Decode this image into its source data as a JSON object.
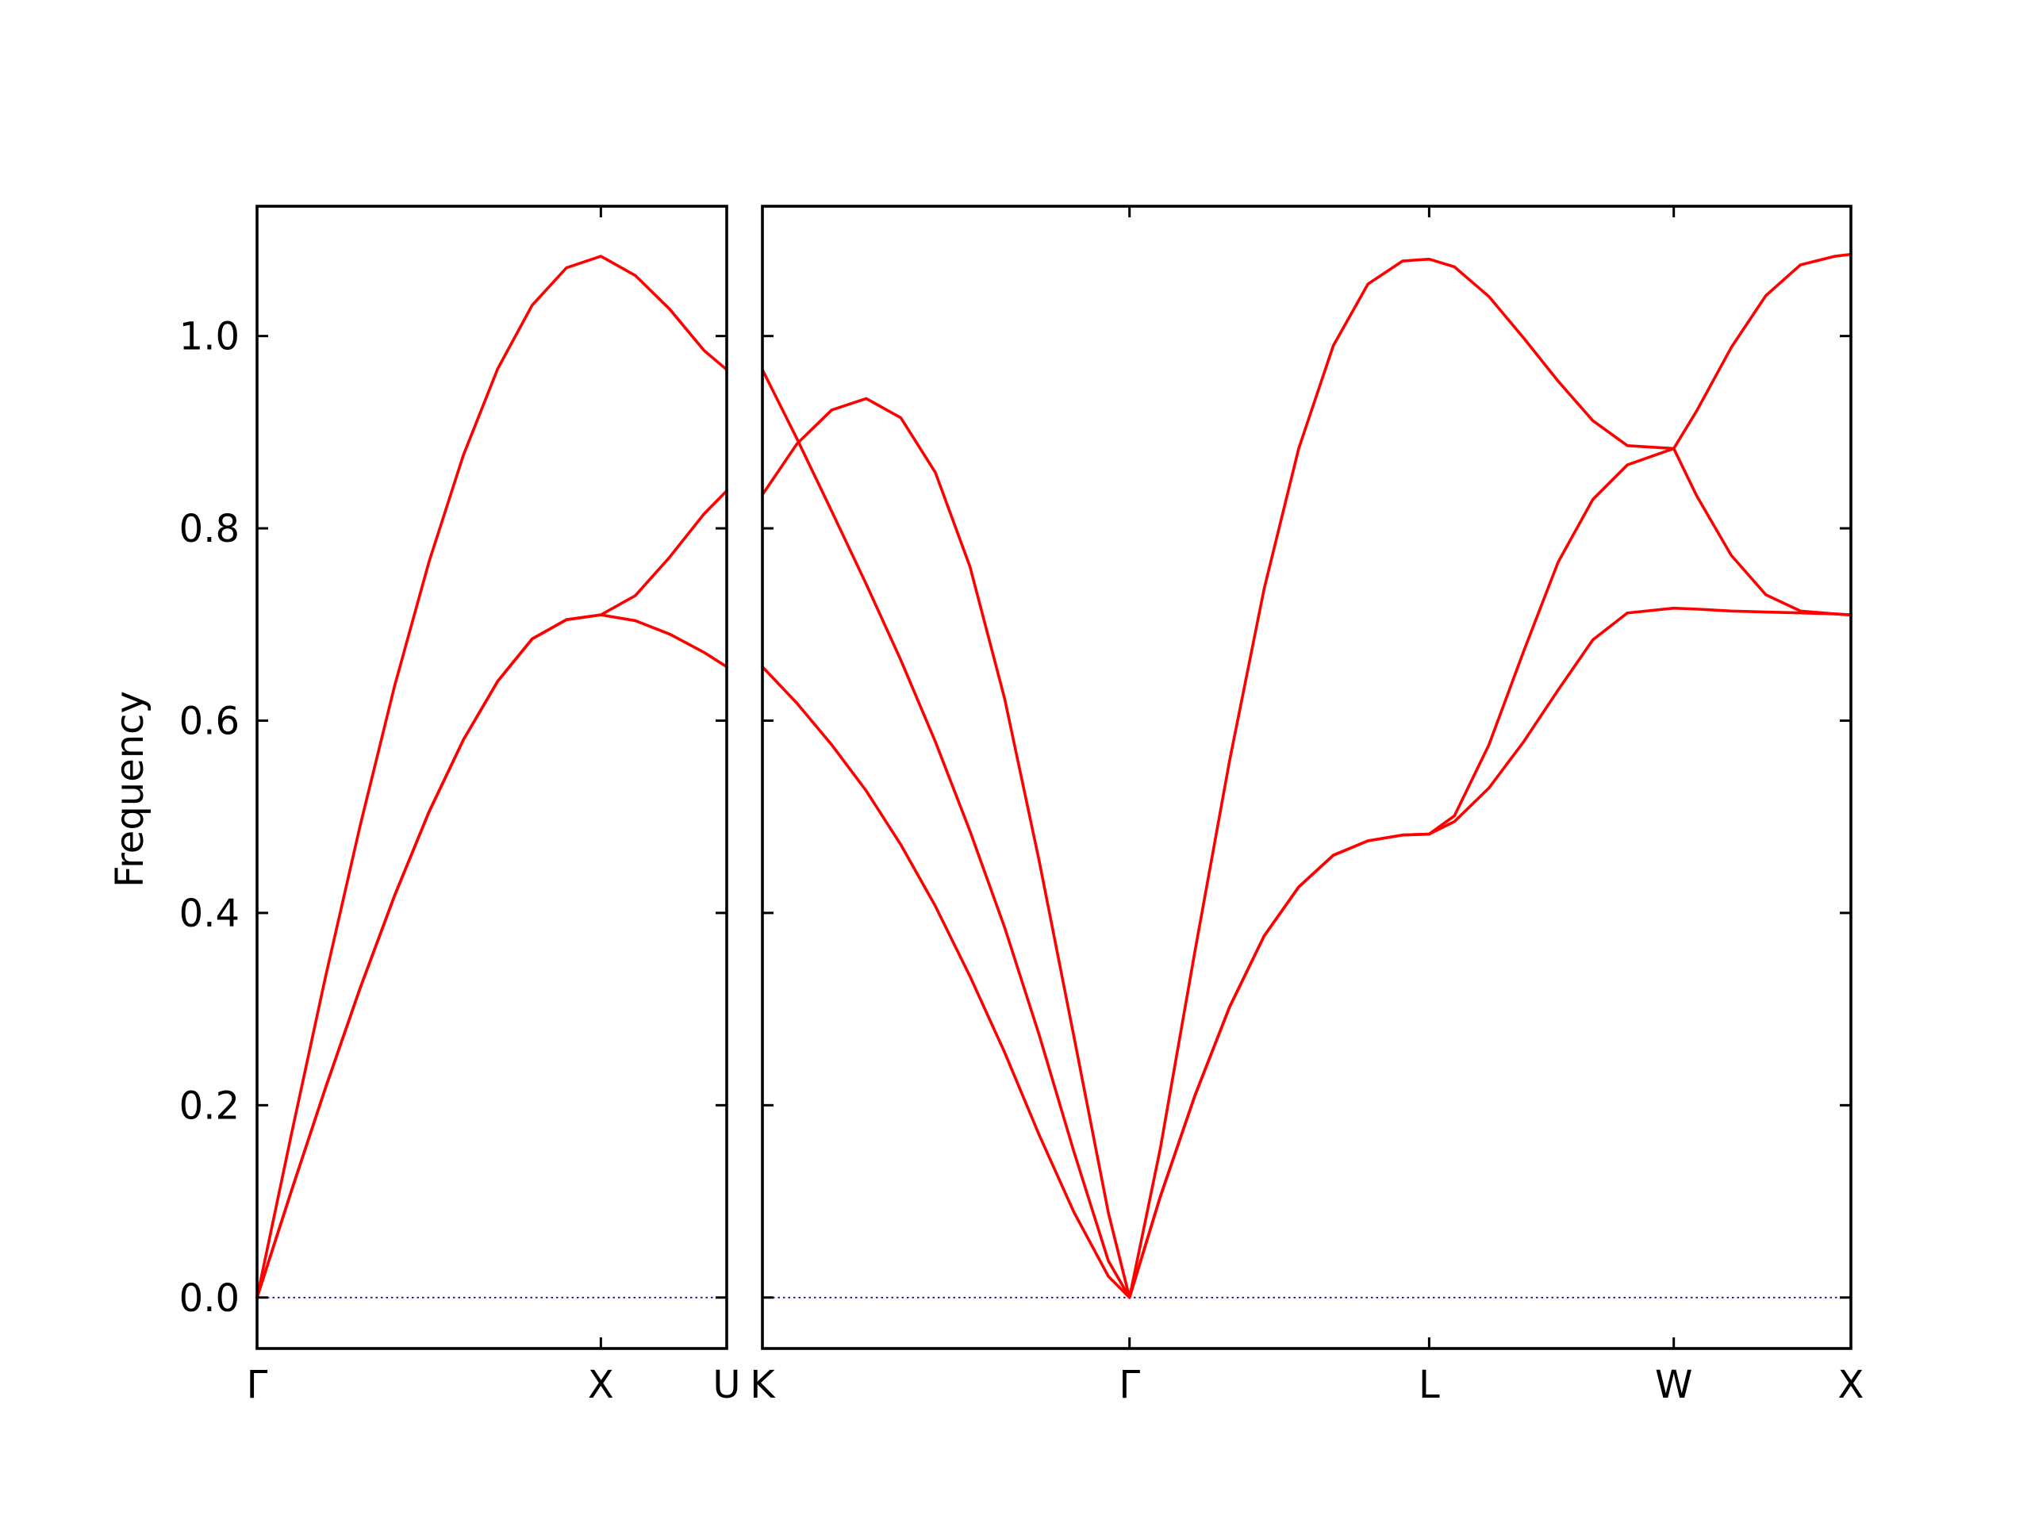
{
  "chart_data": {
    "type": "line",
    "ylabel": "Frequency",
    "ylim": [
      -0.053,
      1.135
    ],
    "yticks": [
      0.0,
      0.2,
      0.4,
      0.6,
      0.8,
      1.0
    ],
    "ytick_labels": [
      "0.0",
      "0.2",
      "0.4",
      "0.6",
      "0.8",
      "1.0"
    ],
    "colors": {
      "bands": "#ff0000",
      "zero_line": "#0000bb"
    },
    "grid": false,
    "legend": "none",
    "panels": [
      {
        "xlim": [
          0,
          1.366
        ],
        "xticks": [
          0,
          1.0,
          1.366
        ],
        "xtick_labels": [
          "Γ",
          "X",
          "U"
        ],
        "series": [
          {
            "x": [
              0,
              0.1,
              0.2,
              0.3,
              0.4,
              0.5,
              0.6,
              0.7,
              0.8,
              0.9,
              1.0,
              1.1,
              1.2,
              1.3,
              1.366
            ],
            "values": [
              0,
              0.17,
              0.335,
              0.491,
              0.636,
              0.765,
              0.876,
              0.966,
              1.032,
              1.071,
              1.083,
              1.063,
              1.028,
              0.985,
              0.965
            ]
          },
          {
            "x": [
              0,
              0.1,
              0.2,
              0.3,
              0.4,
              0.5,
              0.6,
              0.7,
              0.8,
              0.9,
              1.0,
              1.1,
              1.2,
              1.3,
              1.366
            ],
            "values": [
              0,
              0.111,
              0.219,
              0.322,
              0.418,
              0.505,
              0.58,
              0.641,
              0.685,
              0.705,
              0.71,
              0.704,
              0.69,
              0.671,
              0.656
            ]
          },
          {
            "x": [
              0,
              0.1,
              0.2,
              0.3,
              0.4,
              0.5,
              0.6,
              0.7,
              0.8,
              0.9,
              1.0,
              1.1,
              1.2,
              1.3,
              1.366
            ],
            "values": [
              0,
              0.111,
              0.219,
              0.322,
              0.418,
              0.505,
              0.58,
              0.641,
              0.685,
              0.705,
              0.71,
              0.73,
              0.77,
              0.815,
              0.839
            ]
          }
        ]
      },
      {
        "xlim": [
          0,
          3.146
        ],
        "xticks": [
          0,
          1.061,
          1.927,
          2.634,
          3.146
        ],
        "xtick_labels": [
          "K",
          "Γ",
          "L",
          "W",
          "X"
        ],
        "series": [
          {
            "x": [
              0,
              0.1,
              0.2,
              0.3,
              0.4,
              0.5,
              0.6,
              0.7,
              0.8,
              0.9,
              1.0,
              1.061,
              1.15,
              1.25,
              1.35,
              1.45,
              1.55,
              1.65,
              1.75,
              1.85,
              1.927,
              2.0,
              2.1,
              2.2,
              2.3,
              2.4,
              2.5,
              2.634,
              2.7,
              2.8,
              2.9,
              3.0,
              3.1,
              3.146
            ],
            "values": [
              0.835,
              0.888,
              0.923,
              0.935,
              0.915,
              0.858,
              0.76,
              0.623,
              0.454,
              0.272,
              0.088,
              0,
              0.155,
              0.36,
              0.558,
              0.737,
              0.883,
              0.99,
              1.054,
              1.078,
              1.08,
              1.072,
              1.041,
              0.998,
              0.953,
              0.912,
              0.886,
              0.883,
              0.922,
              0.988,
              1.042,
              1.074,
              1.083,
              1.085
            ]
          },
          {
            "x": [
              0,
              0.1,
              0.2,
              0.3,
              0.4,
              0.5,
              0.6,
              0.7,
              0.8,
              0.9,
              1.0,
              1.061,
              1.15,
              1.25,
              1.35,
              1.45,
              1.55,
              1.65,
              1.75,
              1.85,
              1.927,
              2.0,
              2.1,
              2.2,
              2.3,
              2.4,
              2.5,
              2.634,
              2.7,
              2.8,
              2.9,
              3.0,
              3.1,
              3.146
            ],
            "values": [
              0.965,
              0.893,
              0.818,
              0.742,
              0.663,
              0.578,
              0.485,
              0.385,
              0.273,
              0.152,
              0.038,
              0,
              0.105,
              0.21,
              0.302,
              0.376,
              0.427,
              0.46,
              0.475,
              0.481,
              0.482,
              0.501,
              0.575,
              0.672,
              0.765,
              0.83,
              0.866,
              0.883,
              0.834,
              0.772,
              0.731,
              0.714,
              0.711,
              0.71
            ]
          },
          {
            "x": [
              0,
              0.1,
              0.2,
              0.3,
              0.4,
              0.5,
              0.6,
              0.7,
              0.8,
              0.9,
              1.0,
              1.061,
              1.15,
              1.25,
              1.35,
              1.45,
              1.55,
              1.65,
              1.75,
              1.85,
              1.927,
              2.0,
              2.1,
              2.2,
              2.3,
              2.4,
              2.5,
              2.634,
              2.7,
              2.8,
              2.9,
              3.0,
              3.1,
              3.146
            ],
            "values": [
              0.656,
              0.618,
              0.575,
              0.527,
              0.471,
              0.407,
              0.334,
              0.255,
              0.169,
              0.089,
              0.022,
              0,
              0.105,
              0.21,
              0.302,
              0.376,
              0.427,
              0.46,
              0.475,
              0.481,
              0.482,
              0.495,
              0.53,
              0.578,
              0.632,
              0.684,
              0.712,
              0.717,
              0.716,
              0.714,
              0.713,
              0.712,
              0.711,
              0.71
            ]
          }
        ]
      }
    ]
  }
}
